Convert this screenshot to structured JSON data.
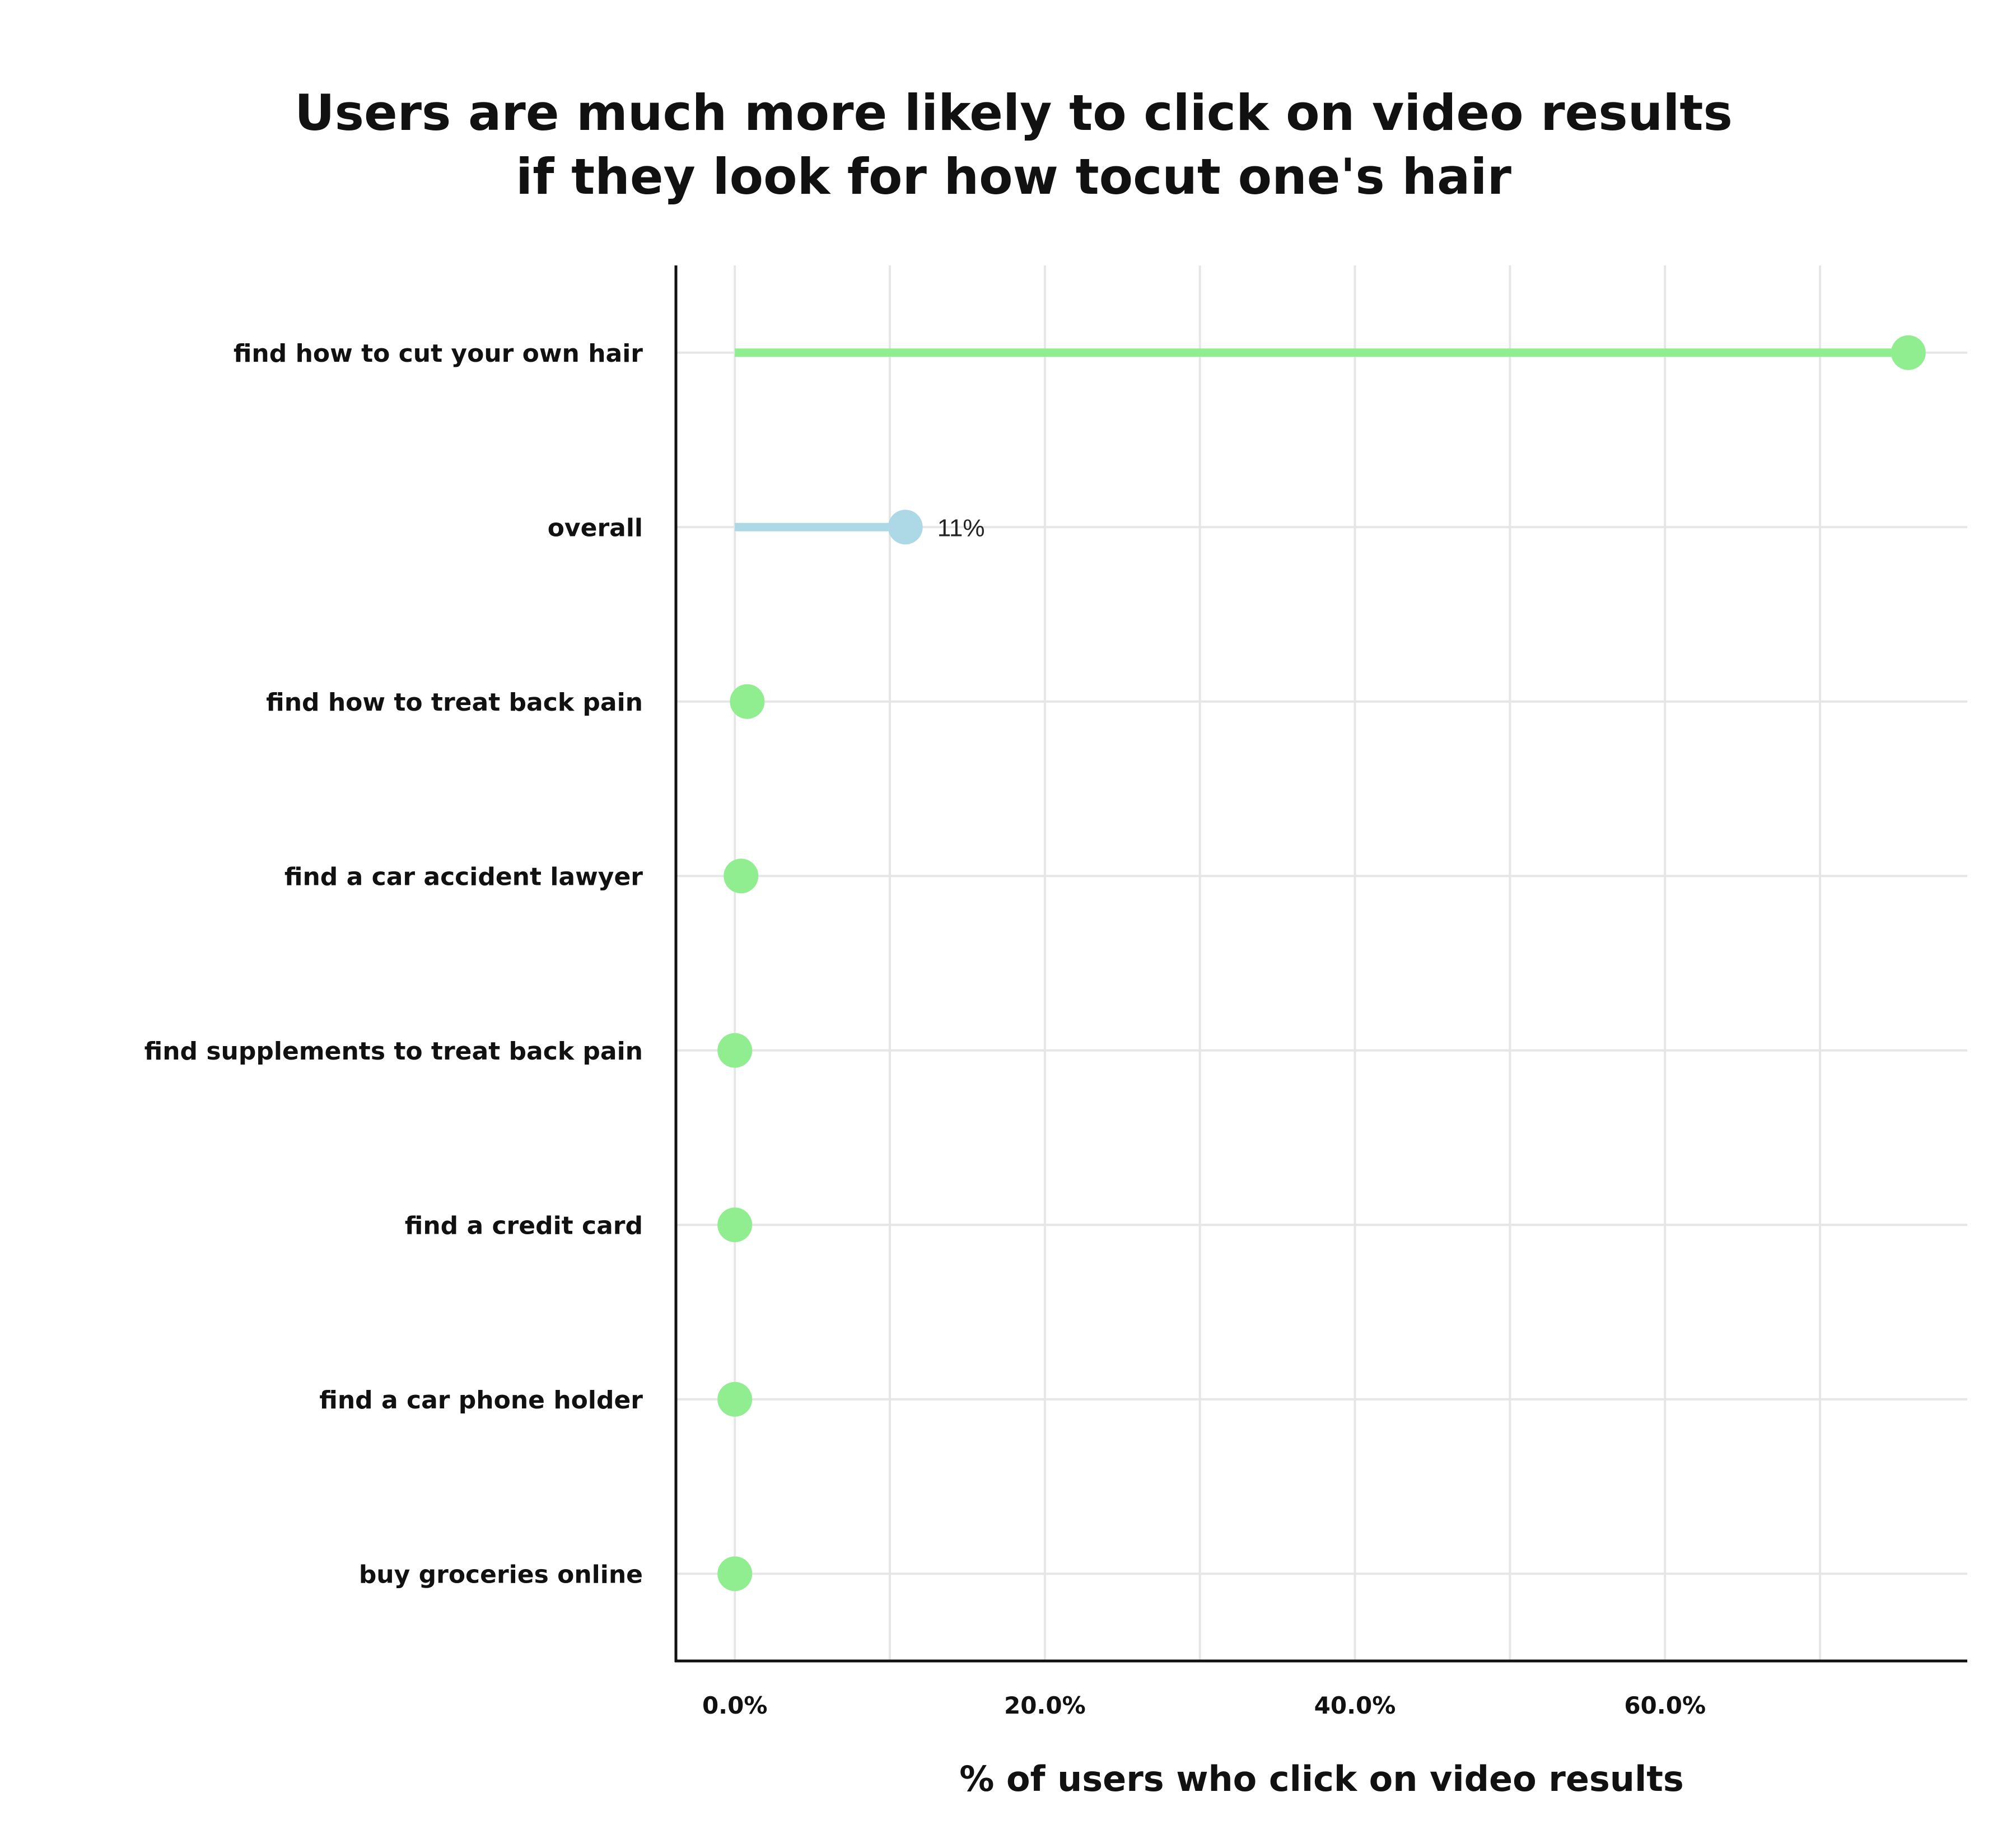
{
  "chart_data": {
    "type": "lollipop",
    "title_lines": [
      "Users are much more likely to click on video results",
      "if they look for how tocut one's hair"
    ],
    "xlabel": "% of users who click on video results",
    "ylabel": "",
    "x_tick_values": [
      0,
      20,
      40,
      60
    ],
    "x_tick_labels": [
      "0.0%",
      "20.0%",
      "40.0%",
      "60.0%"
    ],
    "xlim": [
      -3.8,
      79.5
    ],
    "grid": true,
    "categories": [
      "find how to cut your own hair",
      "overall",
      "find how to treat back pain",
      "find a car accident lawyer",
      "find supplements to treat back pain",
      "find a credit card",
      "find a car phone holder",
      "buy groceries online"
    ],
    "values": [
      75.7,
      11,
      0.8,
      0.4,
      0,
      0,
      0,
      0
    ],
    "point_labels": [
      "",
      "11%",
      "",
      "",
      "",
      "",
      "",
      ""
    ],
    "colors": [
      "#90EE90",
      "#ADD8E6",
      "#90EE90",
      "#90EE90",
      "#90EE90",
      "#90EE90",
      "#90EE90",
      "#90EE90"
    ]
  }
}
